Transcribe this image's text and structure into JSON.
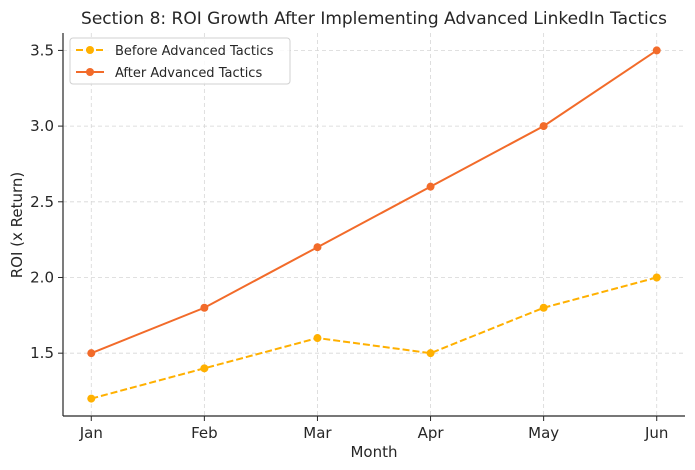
{
  "chart_data": {
    "type": "line",
    "title": "Section 8: ROI Growth After Implementing Advanced LinkedIn Tactics",
    "xlabel": "Month",
    "ylabel": "ROI (x Return)",
    "categories": [
      "Jan",
      "Feb",
      "Mar",
      "Apr",
      "May",
      "Jun"
    ],
    "series": [
      {
        "name": "Before Advanced Tactics",
        "values": [
          1.2,
          1.4,
          1.6,
          1.5,
          1.8,
          2.0
        ],
        "color": "#FFB000",
        "dashed": true
      },
      {
        "name": "After Advanced Tactics",
        "values": [
          1.5,
          1.8,
          2.2,
          2.6,
          3.0,
          3.5
        ],
        "color": "#F26B2A",
        "dashed": false
      }
    ],
    "yticks": [
      1.5,
      2.0,
      2.5,
      3.0,
      3.5
    ],
    "ytick_labels": [
      "1.5",
      "2.0",
      "2.5",
      "3.0",
      "3.5"
    ],
    "ylim": [
      1.085,
      3.615
    ],
    "grid": true,
    "legend": "top-left"
  }
}
